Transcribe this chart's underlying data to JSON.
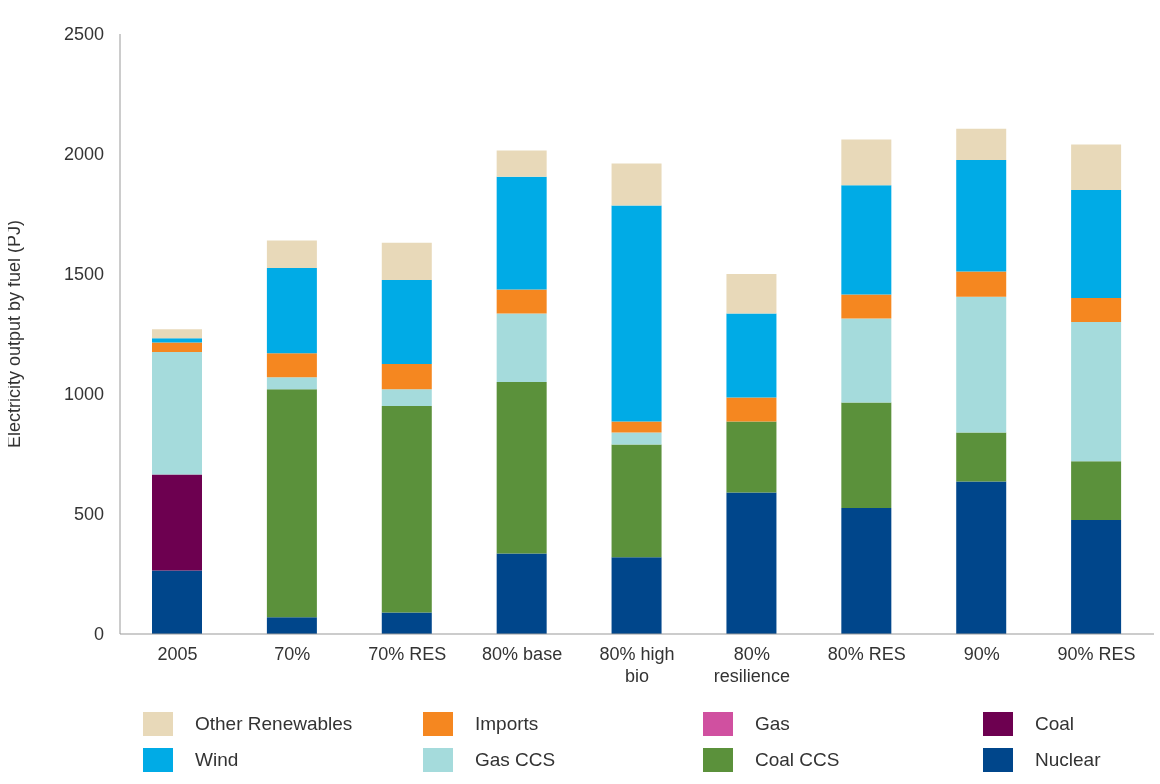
{
  "chart_data": {
    "type": "bar",
    "stacked": true,
    "ylabel": "Electricity output by fuel (PJ)",
    "categories": [
      "2005",
      "70%",
      "70% RES",
      "80% base",
      "80% high bio",
      "80% resilience",
      "80% RES",
      "90%",
      "90% RES"
    ],
    "series": [
      {
        "name": "Nuclear",
        "color": "#00468b",
        "values": [
          265,
          70,
          90,
          335,
          320,
          590,
          525,
          635,
          475
        ]
      },
      {
        "name": "Coal",
        "color": "#6d0050",
        "values": [
          400,
          0,
          0,
          0,
          0,
          0,
          0,
          0,
          0
        ]
      },
      {
        "name": "Coal CCS",
        "color": "#5b913b",
        "values": [
          0,
          950,
          860,
          715,
          470,
          295,
          440,
          205,
          245
        ]
      },
      {
        "name": "Gas",
        "color": "#d050a0",
        "values": [
          0,
          0,
          0,
          0,
          0,
          0,
          0,
          0,
          0
        ]
      },
      {
        "name": "Gas CCS",
        "color": "#a5dbdc",
        "values": [
          510,
          50,
          70,
          285,
          50,
          0,
          350,
          565,
          580
        ]
      },
      {
        "name": "Imports",
        "color": "#f58720",
        "values": [
          40,
          100,
          105,
          100,
          45,
          100,
          100,
          105,
          100
        ]
      },
      {
        "name": "Wind",
        "color": "#00abe6",
        "values": [
          17,
          355,
          350,
          470,
          900,
          350,
          455,
          465,
          450
        ]
      },
      {
        "name": "Other Renewables",
        "color": "#e8d9b9",
        "values": [
          38,
          115,
          155,
          110,
          175,
          165,
          190,
          130,
          190
        ]
      }
    ],
    "ylim": [
      0,
      2500
    ],
    "yticks": [
      0,
      500,
      1000,
      1500,
      2000,
      2500
    ],
    "grid": false,
    "legend": "bottom"
  }
}
